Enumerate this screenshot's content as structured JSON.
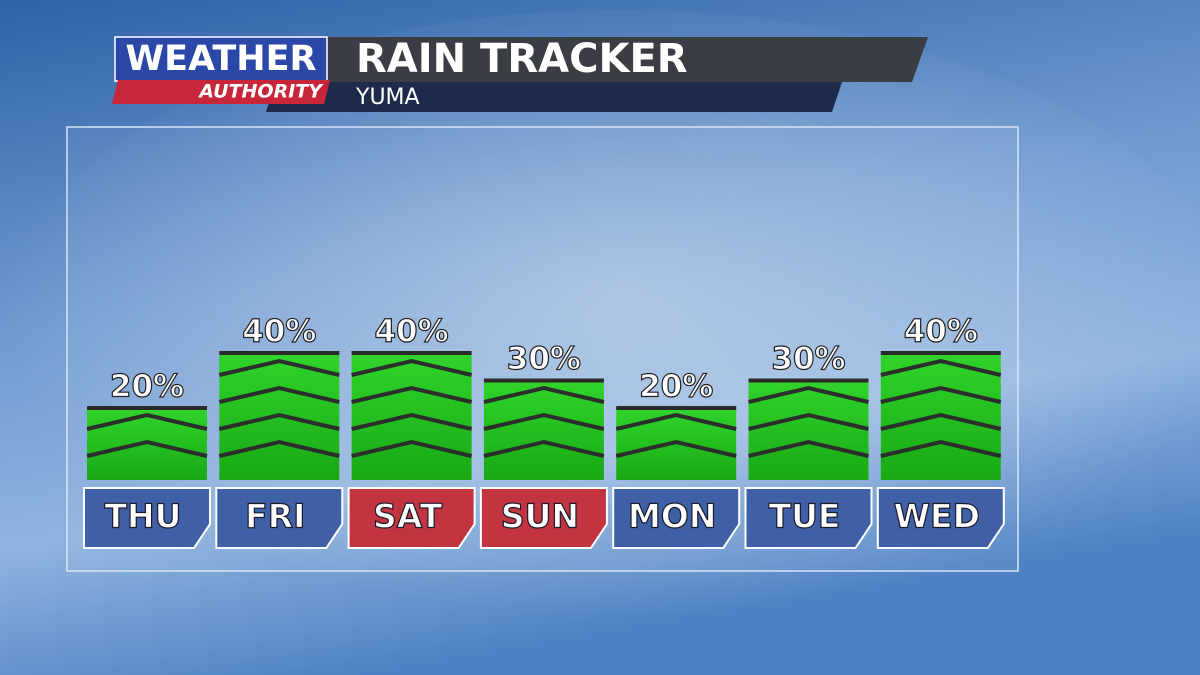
{
  "chart_data": {
    "type": "bar",
    "logo": {
      "line1": "WEATHER",
      "line2": "AUTHORITY"
    },
    "title": "RAIN TRACKER",
    "subtitle": "YUMA",
    "categories": [
      "THU",
      "FRI",
      "SAT",
      "SUN",
      "MON",
      "TUE",
      "WED"
    ],
    "values": [
      20,
      40,
      40,
      30,
      20,
      30,
      40
    ],
    "value_labels": [
      "20%",
      "40%",
      "40%",
      "30%",
      "20%",
      "30%",
      "40%"
    ],
    "color": "#22c51e",
    "category_colors": [
      "#3f5fa6",
      "#3f5fa6",
      "#c2343f",
      "#c2343f",
      "#3f5fa6",
      "#3f5fa6",
      "#3f5fa6"
    ]
  }
}
